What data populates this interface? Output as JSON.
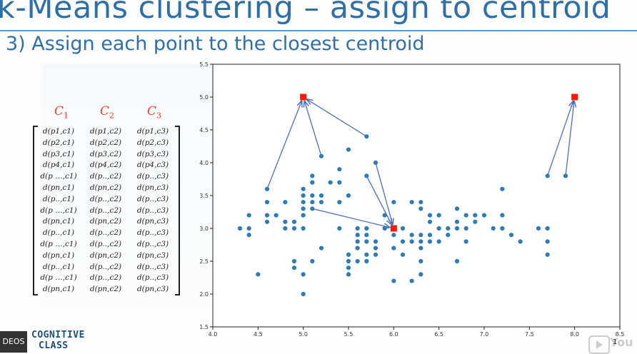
{
  "slide": {
    "title": "k-Means clustering – assign to centroid",
    "subtitle": "3) Assign each point to the closest centroid"
  },
  "matrix": {
    "headers": [
      {
        "letter": "C",
        "sub": "1"
      },
      {
        "letter": "C",
        "sub": "2"
      },
      {
        "letter": "C",
        "sub": "3"
      }
    ],
    "rows": [
      [
        "d(p1,c1)",
        "d(p1,c2)",
        "d(p1,c3)"
      ],
      [
        "d(p2,c1)",
        "d(p2,c2)",
        "d(p2,c3)"
      ],
      [
        "d(p3,c1)",
        "d(p3,c2)",
        "d(p3,c3)"
      ],
      [
        "d(p4,c1)",
        "d(p4,c2)",
        "d(p4,c3)"
      ],
      [
        "d(p …,c1)",
        "d(p..,c2)",
        "d(p..,c3)"
      ],
      [
        "d(pn,c1)",
        "d(pn,c2)",
        "d(pn,c3)"
      ],
      [
        "d(p..,c1)",
        "d(p..,c2)",
        "d(p..,c3)"
      ],
      [
        "d(p …,c1)",
        "d(p..,c2)",
        "d(p..,c3)"
      ],
      [
        "d(pn,c1)",
        "d(pn,c2)",
        "d(pn,c3)"
      ],
      [
        "d(p..,c1)",
        "d(p..,c2)",
        "d(p..,c3)"
      ],
      [
        "d(p …,c1)",
        "d(p..,c2)",
        "d(p..,c3)"
      ],
      [
        "d(pn,c1)",
        "d(pn,c2)",
        "d(pn,c3)"
      ],
      [
        "d(p..,c1)",
        "d(p..,c2)",
        "d(p..,c3)"
      ],
      [
        "d(p …,c1)",
        "d(p..,c2)",
        "d(p..,c3)"
      ],
      [
        "d(pn,c1)",
        "d(pn,c2)",
        "d(pn,c3)"
      ]
    ]
  },
  "chart_data": {
    "type": "scatter",
    "xlim": [
      4.0,
      8.5
    ],
    "ylim": [
      1.5,
      5.5
    ],
    "xticks": [
      "4.0",
      "4.5",
      "5.0",
      "5.5",
      "6.0",
      "6.5",
      "7.0",
      "7.5",
      "8.0",
      "8.5"
    ],
    "yticks": [
      "1.5",
      "2.0",
      "2.5",
      "3.0",
      "3.5",
      "4.0",
      "4.5",
      "5.0",
      "5.5"
    ],
    "point_color": "#2e7bb6",
    "centroid_color": "#ff1a00",
    "arrow_color": "#4a6fbf",
    "points": [
      [
        4.3,
        3.0
      ],
      [
        4.4,
        3.2
      ],
      [
        4.4,
        3.0
      ],
      [
        4.4,
        2.9
      ],
      [
        4.5,
        2.3
      ],
      [
        4.6,
        3.6
      ],
      [
        4.6,
        3.4
      ],
      [
        4.6,
        3.2
      ],
      [
        4.6,
        3.1
      ],
      [
        4.7,
        3.2
      ],
      [
        4.8,
        3.4
      ],
      [
        4.8,
        3.1
      ],
      [
        4.8,
        3.0
      ],
      [
        4.9,
        3.1
      ],
      [
        4.9,
        3.0
      ],
      [
        4.9,
        2.5
      ],
      [
        4.9,
        2.4
      ],
      [
        5.0,
        3.6
      ],
      [
        5.0,
        3.5
      ],
      [
        5.0,
        3.4
      ],
      [
        5.0,
        3.3
      ],
      [
        5.0,
        3.2
      ],
      [
        5.0,
        3.0
      ],
      [
        5.0,
        2.3
      ],
      [
        5.0,
        2.0
      ],
      [
        5.1,
        3.8
      ],
      [
        5.1,
        3.7
      ],
      [
        5.1,
        3.5
      ],
      [
        5.1,
        3.4
      ],
      [
        5.1,
        3.3
      ],
      [
        5.1,
        2.5
      ],
      [
        5.2,
        4.1
      ],
      [
        5.2,
        3.5
      ],
      [
        5.2,
        3.4
      ],
      [
        5.2,
        2.7
      ],
      [
        5.3,
        3.7
      ],
      [
        5.4,
        3.9
      ],
      [
        5.4,
        3.7
      ],
      [
        5.4,
        3.4
      ],
      [
        5.4,
        3.0
      ],
      [
        5.5,
        4.2
      ],
      [
        5.5,
        3.5
      ],
      [
        5.5,
        2.6
      ],
      [
        5.5,
        2.5
      ],
      [
        5.5,
        2.4
      ],
      [
        5.5,
        2.3
      ],
      [
        5.6,
        3.0
      ],
      [
        5.6,
        2.9
      ],
      [
        5.6,
        2.8
      ],
      [
        5.6,
        2.7
      ],
      [
        5.6,
        2.5
      ],
      [
        5.7,
        4.4
      ],
      [
        5.7,
        3.8
      ],
      [
        5.7,
        3.0
      ],
      [
        5.7,
        2.9
      ],
      [
        5.7,
        2.8
      ],
      [
        5.7,
        2.6
      ],
      [
        5.7,
        2.5
      ],
      [
        5.8,
        4.0
      ],
      [
        5.8,
        2.8
      ],
      [
        5.8,
        2.7
      ],
      [
        5.8,
        2.6
      ],
      [
        5.9,
        3.2
      ],
      [
        5.9,
        3.0
      ],
      [
        6.0,
        3.4
      ],
      [
        6.0,
        2.9
      ],
      [
        6.0,
        2.7
      ],
      [
        6.0,
        2.2
      ],
      [
        6.1,
        3.0
      ],
      [
        6.1,
        2.8
      ],
      [
        6.1,
        2.6
      ],
      [
        6.2,
        3.4
      ],
      [
        6.2,
        2.9
      ],
      [
        6.2,
        2.8
      ],
      [
        6.2,
        2.2
      ],
      [
        6.3,
        3.4
      ],
      [
        6.3,
        3.3
      ],
      [
        6.3,
        2.9
      ],
      [
        6.3,
        2.8
      ],
      [
        6.3,
        2.7
      ],
      [
        6.3,
        2.5
      ],
      [
        6.3,
        2.3
      ],
      [
        6.4,
        3.2
      ],
      [
        6.4,
        3.1
      ],
      [
        6.4,
        2.9
      ],
      [
        6.4,
        2.8
      ],
      [
        6.5,
        3.2
      ],
      [
        6.5,
        3.0
      ],
      [
        6.5,
        2.8
      ],
      [
        6.6,
        3.0
      ],
      [
        6.6,
        2.9
      ],
      [
        6.7,
        3.3
      ],
      [
        6.7,
        3.1
      ],
      [
        6.7,
        3.0
      ],
      [
        6.7,
        2.5
      ],
      [
        6.8,
        3.2
      ],
      [
        6.8,
        3.0
      ],
      [
        6.8,
        2.8
      ],
      [
        6.9,
        3.2
      ],
      [
        6.9,
        3.1
      ],
      [
        7.0,
        3.2
      ],
      [
        7.1,
        3.0
      ],
      [
        7.2,
        3.6
      ],
      [
        7.2,
        3.2
      ],
      [
        7.2,
        3.0
      ],
      [
        7.3,
        2.9
      ],
      [
        7.4,
        2.8
      ],
      [
        7.6,
        3.0
      ],
      [
        7.7,
        3.8
      ],
      [
        7.7,
        3.0
      ],
      [
        7.7,
        2.8
      ],
      [
        7.7,
        2.6
      ],
      [
        7.9,
        3.8
      ]
    ],
    "centroids": [
      [
        5.0,
        5.0
      ],
      [
        6.0,
        3.0
      ],
      [
        8.0,
        5.0
      ]
    ],
    "arrows": [
      {
        "from": [
          4.6,
          3.6
        ],
        "to": [
          5.0,
          5.0
        ]
      },
      {
        "from": [
          5.2,
          4.1
        ],
        "to": [
          5.0,
          5.0
        ]
      },
      {
        "from": [
          5.7,
          4.4
        ],
        "to": [
          5.0,
          5.0
        ]
      },
      {
        "from": [
          5.1,
          3.3
        ],
        "to": [
          6.0,
          3.0
        ]
      },
      {
        "from": [
          5.7,
          3.8
        ],
        "to": [
          6.0,
          3.0
        ]
      },
      {
        "from": [
          5.8,
          4.0
        ],
        "to": [
          6.0,
          3.0
        ]
      },
      {
        "from": [
          7.7,
          3.8
        ],
        "to": [
          8.0,
          5.0
        ]
      },
      {
        "from": [
          7.9,
          3.8
        ],
        "to": [
          8.0,
          5.0
        ]
      }
    ]
  },
  "branding": {
    "logo_line1": "COGNITIVE",
    "logo_line2": "CLASS",
    "video_badge": "DEOS",
    "player_text": "You",
    "page_indicator": "1"
  }
}
